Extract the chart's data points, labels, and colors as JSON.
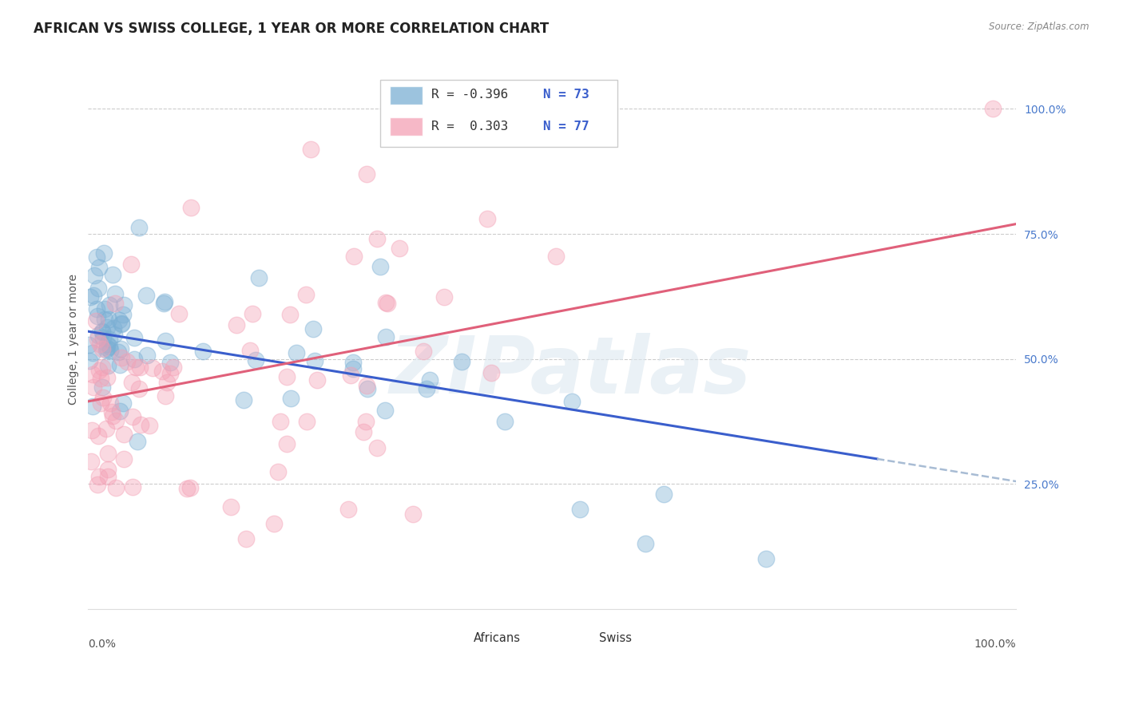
{
  "title": "AFRICAN VS SWISS COLLEGE, 1 YEAR OR MORE CORRELATION CHART",
  "source": "Source: ZipAtlas.com",
  "ylabel": "College, 1 year or more",
  "watermark": "ZIPatlas",
  "legend_african_R": -0.396,
  "legend_african_N": 73,
  "legend_swiss_R": 0.303,
  "legend_swiss_N": 77,
  "xlim": [
    0.0,
    1.0
  ],
  "ylim": [
    0.0,
    1.05
  ],
  "yticks": [
    0.25,
    0.5,
    0.75,
    1.0
  ],
  "ytick_labels": [
    "25.0%",
    "50.0%",
    "75.0%",
    "100.0%"
  ],
  "grid_color": "#cccccc",
  "background_color": "#ffffff",
  "african_scatter_color": "#7bafd4",
  "swiss_scatter_color": "#f4a0b5",
  "african_line_color": "#3a5ecc",
  "swiss_line_color": "#e0607a",
  "ytick_color": "#4a7acc",
  "title_fontsize": 12,
  "axis_label_fontsize": 10,
  "tick_fontsize": 10,
  "african_line_start_x": 0.0,
  "african_line_start_y": 0.555,
  "african_line_end_x": 0.85,
  "african_line_end_y": 0.3,
  "swiss_line_start_x": 0.0,
  "swiss_line_start_y": 0.415,
  "swiss_line_end_x": 1.0,
  "swiss_line_end_y": 0.77
}
